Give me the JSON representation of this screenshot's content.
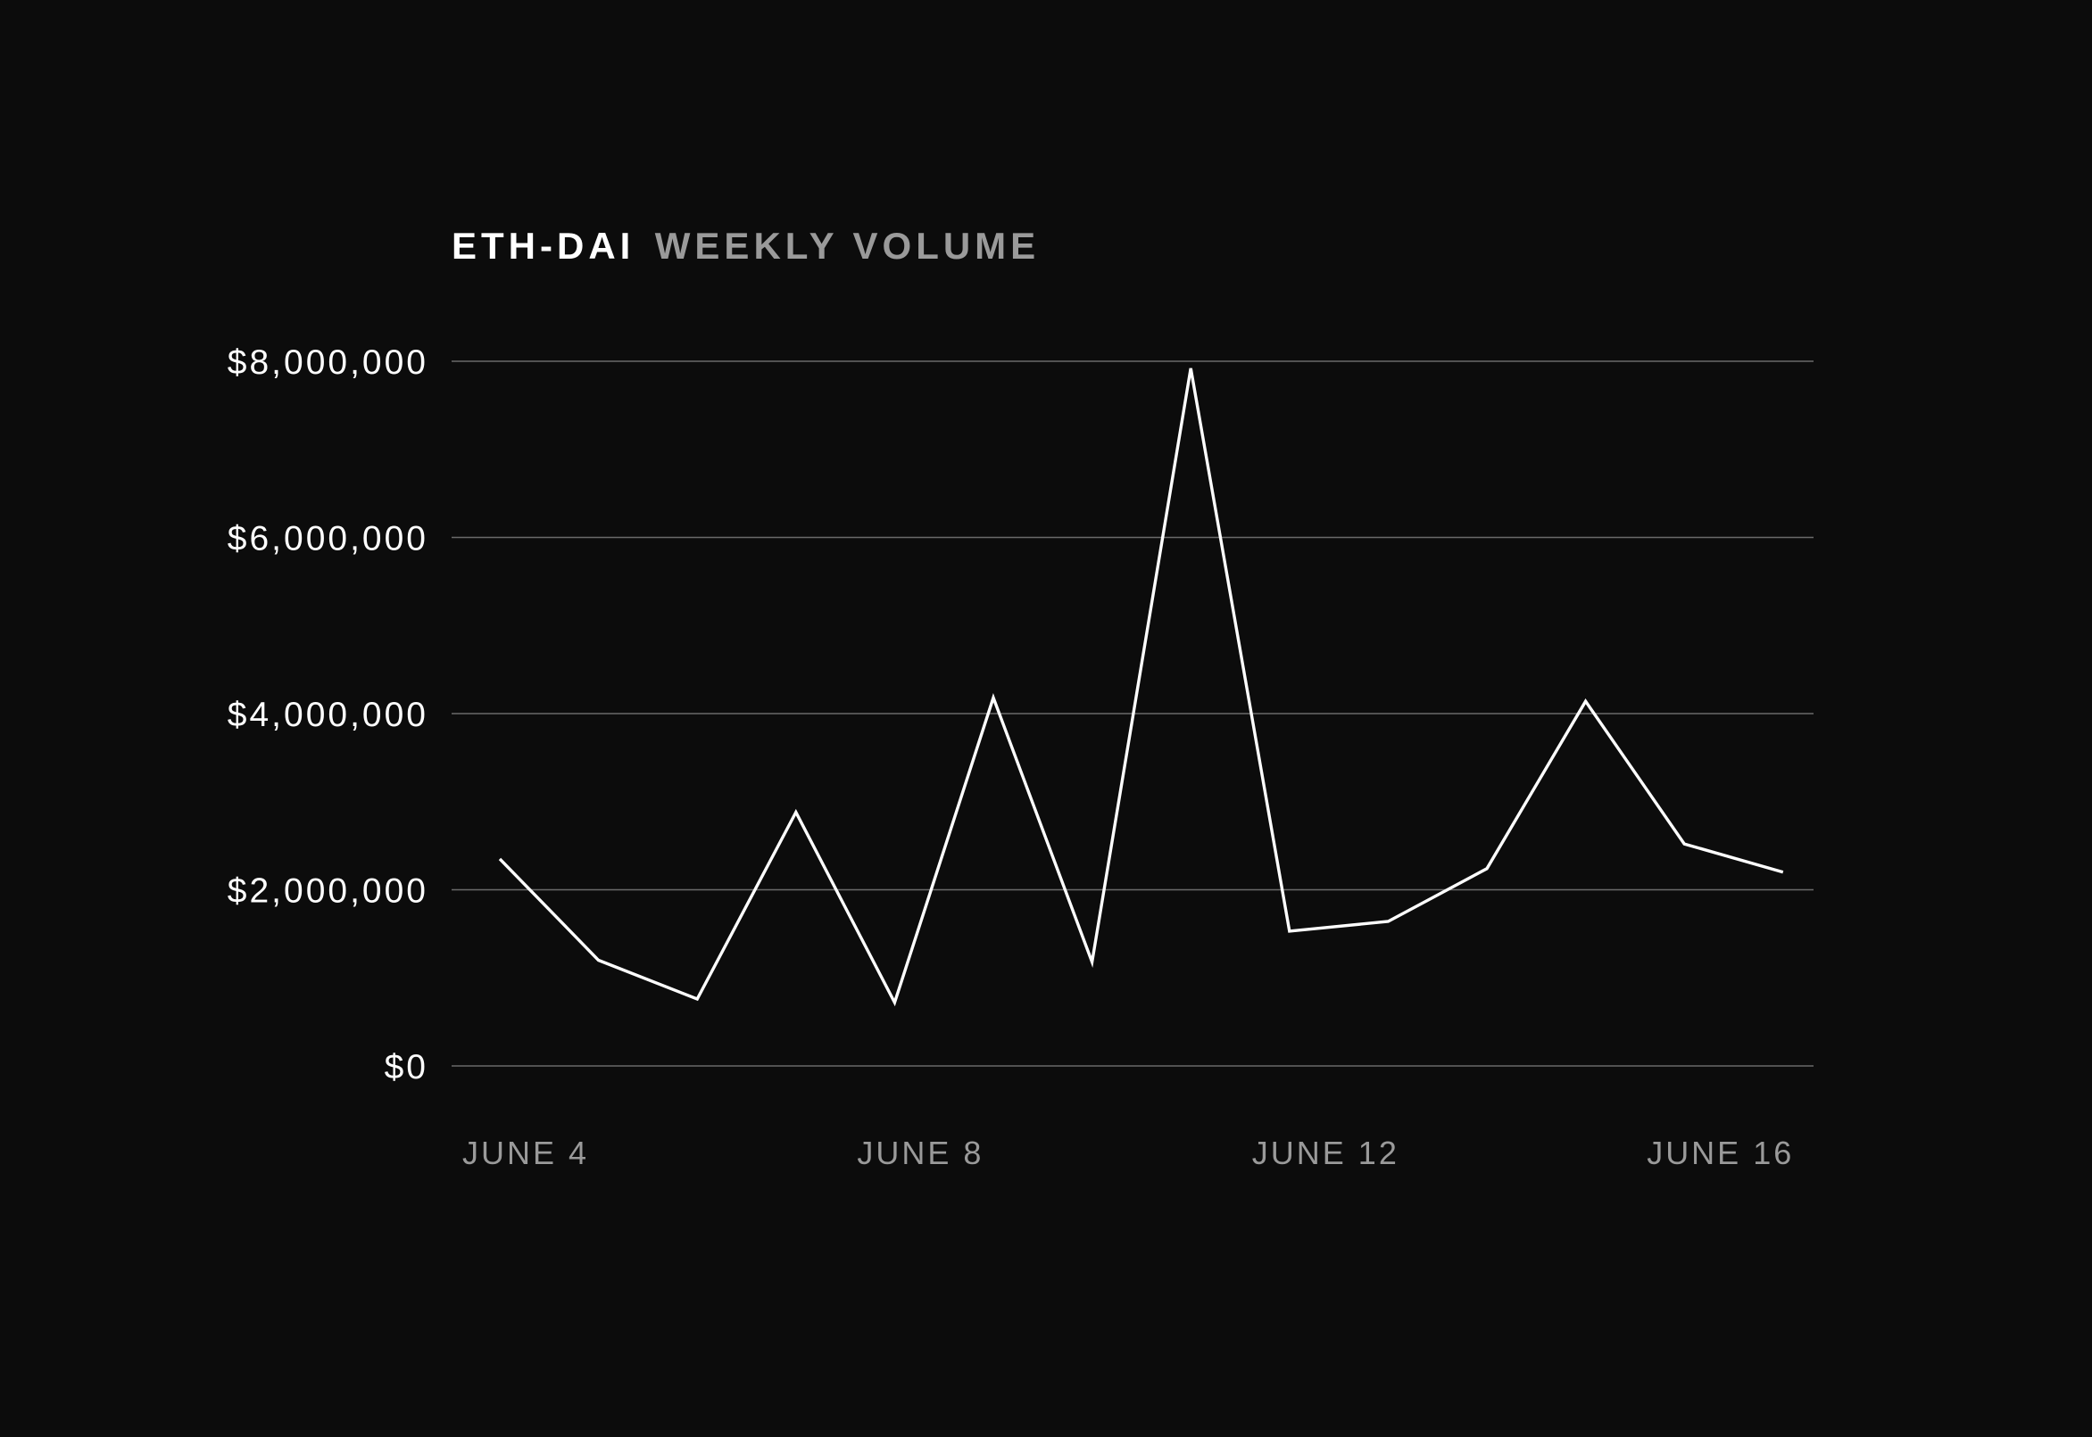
{
  "chart_data": {
    "type": "line",
    "title": "ETH-DAI",
    "subtitle": "WEEKLY VOLUME",
    "xlabel": "",
    "ylabel": "",
    "ylim": [
      0,
      8000000
    ],
    "grid": true,
    "y_ticks": [
      {
        "value": 8000000,
        "label": "$8,000,000"
      },
      {
        "value": 6000000,
        "label": "$6,000,000"
      },
      {
        "value": 4000000,
        "label": "$4,000,000"
      },
      {
        "value": 2000000,
        "label": "$2,000,000"
      },
      {
        "value": 0,
        "label": "$0"
      }
    ],
    "x_ticks": [
      {
        "day": 4,
        "label": "JUNE 4"
      },
      {
        "day": 8,
        "label": "JUNE 8"
      },
      {
        "day": 12,
        "label": "JUNE 12"
      },
      {
        "day": 16,
        "label": "JUNE 16"
      }
    ],
    "x": [
      "June 4",
      "June 5",
      "June 6",
      "June 7",
      "June 8",
      "June 9",
      "June 10",
      "June 11",
      "June 12",
      "June 13",
      "June 14",
      "June 15",
      "June 16",
      "June 17"
    ],
    "x_days": [
      4,
      5,
      6,
      7,
      8,
      9,
      10,
      11,
      12,
      13,
      14,
      15,
      16,
      17
    ],
    "series": [
      {
        "values": [
          2350000,
          1200000,
          760000,
          2880000,
          720000,
          4180000,
          1180000,
          7920000,
          1530000,
          1640000,
          2240000,
          4140000,
          2520000,
          2200000
        ],
        "color": "#ffffff"
      }
    ]
  }
}
